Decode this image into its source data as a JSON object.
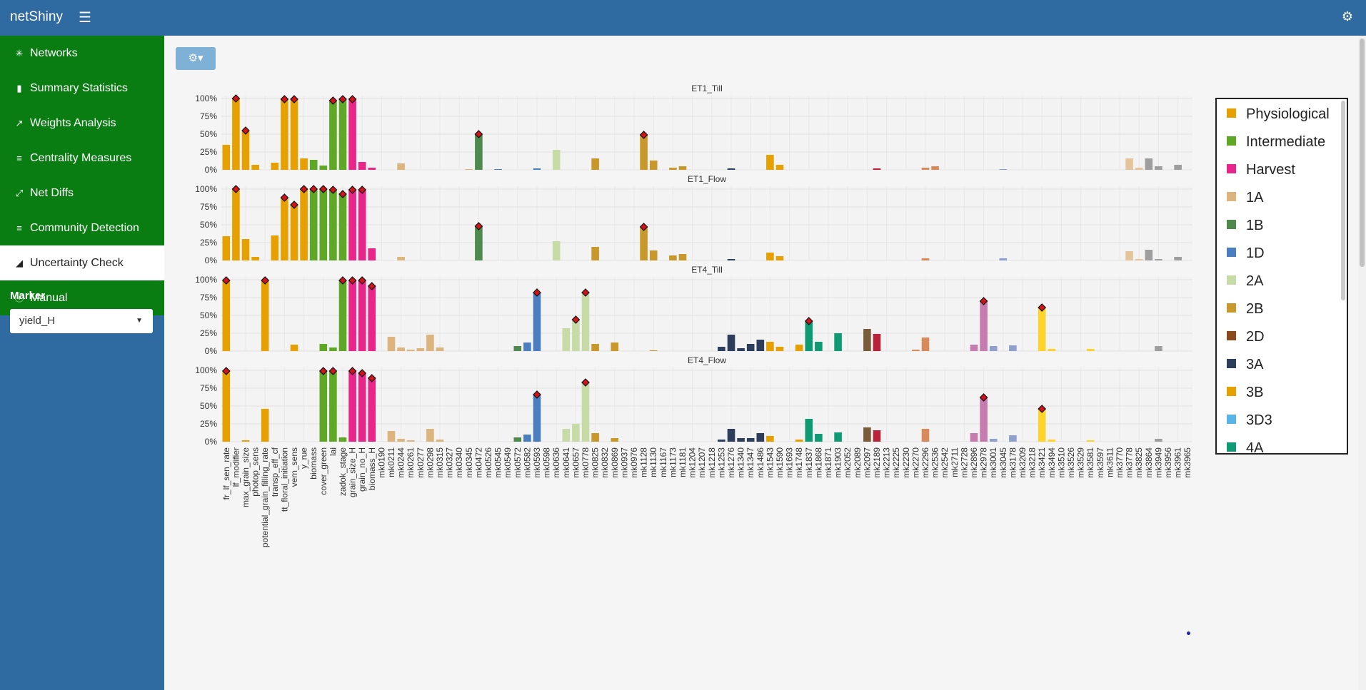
{
  "app": {
    "title": "netShiny"
  },
  "nav": [
    {
      "label": "Networks",
      "icon": "network-icon"
    },
    {
      "label": "Summary Statistics",
      "icon": "bar-chart-icon"
    },
    {
      "label": "Weights Analysis",
      "icon": "line-chart-icon"
    },
    {
      "label": "Centrality Measures",
      "icon": "align-center-icon"
    },
    {
      "label": "Net Diffs",
      "icon": "compress-icon"
    },
    {
      "label": "Community Detection",
      "icon": "list-chart-icon"
    },
    {
      "label": "Uncertainty Check",
      "icon": "area-chart-icon",
      "active": true
    },
    {
      "label": "Manual",
      "icon": "info-icon"
    }
  ],
  "marker": {
    "label": "Marker",
    "value": "yield_H"
  },
  "legend": [
    {
      "label": "Physiological",
      "color": "#e6a100"
    },
    {
      "label": "Intermediate",
      "color": "#5fa826"
    },
    {
      "label": "Harvest",
      "color": "#e8268a"
    },
    {
      "label": "1A",
      "color": "#dcb47e"
    },
    {
      "label": "1B",
      "color": "#4e8a4e"
    },
    {
      "label": "1D",
      "color": "#4b7ec0"
    },
    {
      "label": "2A",
      "color": "#c6dba6"
    },
    {
      "label": "2B",
      "color": "#c9982a"
    },
    {
      "label": "2D",
      "color": "#8b4a1e"
    },
    {
      "label": "3A",
      "color": "#2c3e5c"
    },
    {
      "label": "3B",
      "color": "#e6a100"
    },
    {
      "label": "3D3",
      "color": "#56b4e9"
    },
    {
      "label": "4A",
      "color": "#0e9a72"
    }
  ],
  "chart_data": {
    "type": "bar",
    "yticks": [
      "0%",
      "25%",
      "50%",
      "75%",
      "100%"
    ],
    "ylim": [
      0,
      100
    ],
    "categories": [
      "fr_lf_sen_rate",
      "lf_modifier",
      "max_grain_size",
      "photop_sens",
      "potential_grain_filling_rate",
      "transp_eff_cf",
      "tt_floral_initiation",
      "vern_sens",
      "y_rue",
      "biomass",
      "cover_green",
      "lai",
      "zadok_stage",
      "grain_size_H",
      "grain_no_H",
      "biomass_H",
      "mk0190",
      "mk0211",
      "mk0244",
      "mk0261",
      "mk0277",
      "mk0298",
      "mk0315",
      "mk0327",
      "mk0340",
      "mk0345",
      "mk0472",
      "mk0526",
      "mk0545",
      "mk0549",
      "mk0572",
      "mk0582",
      "mk0593",
      "mk0598",
      "mk0636",
      "mk0641",
      "mk0657",
      "mk0778",
      "mk0825",
      "mk0832",
      "mk0869",
      "mk0937",
      "mk0976",
      "mk1128",
      "mk1130",
      "mk1167",
      "mk1173",
      "mk1181",
      "mk1204",
      "mk1207",
      "mk1218",
      "mk1253",
      "mk1276",
      "mk1340",
      "mk1347",
      "mk1486",
      "mk1543",
      "mk1590",
      "mk1693",
      "mk1748",
      "mk1837",
      "mk1868",
      "mk1871",
      "mk1903",
      "mk2052",
      "mk2089",
      "mk2097",
      "mk2189",
      "mk2213",
      "mk2225",
      "mk2230",
      "mk2270",
      "mk2296",
      "mk2536",
      "mk2542",
      "mk2711",
      "mk2728",
      "mk2896",
      "mk2978",
      "mk3001",
      "mk3045",
      "mk3178",
      "mk3209",
      "mk3218",
      "mk3421",
      "mk3494",
      "mk3510",
      "mk3526",
      "mk3529",
      "mk3581",
      "mk3597",
      "mk3611",
      "mk3770",
      "mk3778",
      "mk3825",
      "mk3864",
      "mk3949",
      "mk3956",
      "mk3961",
      "mk3965"
    ],
    "category_group": [
      0,
      0,
      0,
      0,
      0,
      0,
      0,
      0,
      0,
      1,
      1,
      1,
      1,
      2,
      2,
      2,
      3,
      3,
      3,
      3,
      3,
      3,
      3,
      3,
      3,
      3,
      4,
      4,
      5,
      5,
      4,
      5,
      5,
      6,
      6,
      6,
      6,
      6,
      7,
      7,
      7,
      7,
      7,
      7,
      7,
      7,
      7,
      7,
      7,
      7,
      9,
      9,
      9,
      9,
      9,
      9,
      10,
      10,
      10,
      10,
      12,
      12,
      12,
      12,
      12,
      12,
      13,
      14,
      15,
      16,
      16,
      16,
      16,
      16,
      17,
      17,
      18,
      18,
      18,
      19,
      19,
      19,
      20,
      20,
      21,
      21,
      21,
      21,
      21,
      21,
      21,
      22,
      22,
      22,
      22,
      23,
      23,
      23,
      23,
      23
    ],
    "group_colors": [
      "#e6a100",
      "#5fa826",
      "#e8268a",
      "#dcb47e",
      "#4e8a4e",
      "#4b7ec0",
      "#c6dba6",
      "#c9982a",
      "#8b4a1e",
      "#2c3e5c",
      "#e6a100",
      "#56b4e9",
      "#0e9a72",
      "#7a5c3a",
      "#b8233a",
      "#1f6aa8",
      "#d98a5a",
      "#d070a8",
      "#c77cb0",
      "#8fa0cc",
      "#e8a0c8",
      "#ffd42a",
      "#e4c49a",
      "#9e9e9e"
    ],
    "series": [
      {
        "name": "ET1_Till",
        "values": [
          35,
          100,
          55,
          7,
          0,
          10,
          99,
          99,
          16,
          14,
          6,
          97,
          99,
          99,
          11,
          3,
          0,
          0,
          9,
          0,
          0,
          0,
          0,
          0,
          0,
          1,
          50,
          0,
          1,
          0,
          0,
          0,
          2,
          0,
          28,
          0,
          0,
          0,
          16,
          0,
          0,
          0,
          0,
          49,
          13,
          0,
          3,
          5,
          0,
          0,
          0,
          0,
          2,
          0,
          0,
          0,
          21,
          7,
          0,
          0,
          0,
          0,
          0,
          0,
          0,
          0,
          0,
          2,
          0,
          0,
          0,
          0,
          3,
          5,
          0,
          0,
          0,
          0,
          0,
          0,
          1,
          0,
          0,
          0,
          0,
          0,
          0,
          0,
          0,
          0,
          0,
          0,
          0,
          16,
          3,
          16,
          5,
          0,
          7,
          0
        ],
        "markers": [
          1,
          2,
          6,
          7,
          11,
          12,
          13,
          26,
          43
        ]
      },
      {
        "name": "ET1_Flow",
        "values": [
          34,
          100,
          30,
          5,
          0,
          35,
          88,
          78,
          100,
          100,
          100,
          99,
          93,
          99,
          99,
          17,
          0,
          0,
          5,
          0,
          0,
          0,
          0,
          0,
          0,
          0,
          48,
          0,
          0,
          0,
          0,
          0,
          0,
          0,
          27,
          0,
          0,
          0,
          19,
          0,
          0,
          0,
          0,
          47,
          14,
          0,
          7,
          9,
          0,
          0,
          0,
          0,
          2,
          0,
          0,
          0,
          11,
          6,
          0,
          0,
          0,
          0,
          0,
          0,
          0,
          0,
          0,
          0,
          0,
          0,
          0,
          0,
          3,
          0,
          0,
          0,
          0,
          0,
          0,
          0,
          3,
          0,
          0,
          0,
          0,
          0,
          0,
          0,
          0,
          0,
          0,
          0,
          0,
          13,
          2,
          15,
          2,
          0,
          5,
          0
        ],
        "markers": [
          1,
          6,
          7,
          8,
          9,
          10,
          11,
          12,
          13,
          14,
          26,
          43
        ]
      },
      {
        "name": "ET4_Till",
        "values": [
          99,
          0,
          0,
          0,
          99,
          0,
          0,
          9,
          0,
          0,
          10,
          5,
          99,
          99,
          99,
          91,
          0,
          20,
          5,
          2,
          4,
          23,
          5,
          0,
          0,
          0,
          0,
          0,
          0,
          0,
          7,
          12,
          82,
          0,
          0,
          32,
          44,
          82,
          10,
          0,
          12,
          0,
          0,
          0,
          1,
          0,
          0,
          0,
          0,
          0,
          0,
          6,
          23,
          4,
          10,
          16,
          13,
          6,
          0,
          9,
          42,
          13,
          0,
          25,
          0,
          0,
          31,
          24,
          0,
          0,
          0,
          2,
          19,
          0,
          0,
          0,
          0,
          9,
          70,
          7,
          0,
          8,
          0,
          0,
          61,
          3,
          0,
          0,
          0,
          3,
          0,
          0,
          0,
          0,
          0,
          0,
          7,
          0,
          0,
          0
        ],
        "markers": [
          0,
          4,
          12,
          13,
          14,
          15,
          32,
          36,
          37,
          60,
          78,
          84
        ]
      },
      {
        "name": "ET4_Flow",
        "values": [
          99,
          0,
          2,
          0,
          46,
          0,
          0,
          0,
          0,
          0,
          99,
          99,
          6,
          99,
          96,
          89,
          0,
          15,
          4,
          2,
          0,
          18,
          3,
          0,
          0,
          0,
          0,
          0,
          0,
          0,
          6,
          10,
          66,
          0,
          0,
          18,
          25,
          83,
          12,
          0,
          5,
          0,
          0,
          0,
          0,
          0,
          0,
          0,
          0,
          0,
          0,
          3,
          18,
          5,
          5,
          12,
          8,
          0,
          0,
          3,
          32,
          11,
          0,
          13,
          0,
          0,
          20,
          16,
          0,
          0,
          0,
          0,
          18,
          0,
          0,
          0,
          0,
          12,
          62,
          4,
          0,
          9,
          0,
          0,
          46,
          3,
          0,
          0,
          0,
          2,
          0,
          0,
          0,
          0,
          0,
          0,
          4,
          0,
          0,
          0
        ],
        "markers": [
          0,
          10,
          11,
          13,
          14,
          15,
          32,
          37,
          78,
          84
        ]
      }
    ]
  }
}
